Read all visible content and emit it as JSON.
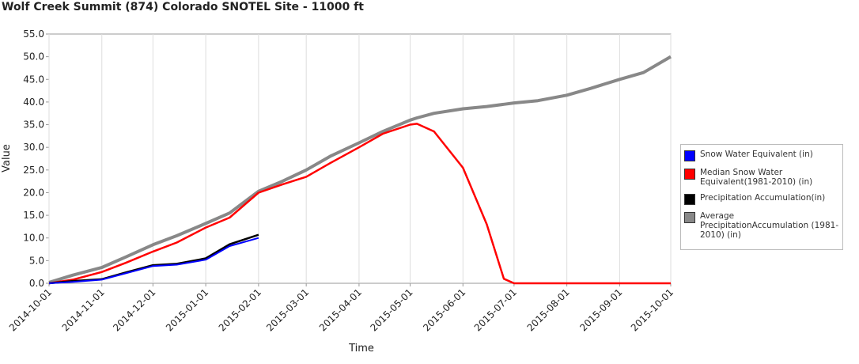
{
  "chart_data": {
    "type": "line",
    "title": "Wolf Creek Summit (874) Colorado  SNOTEL Site - 11000 ft",
    "x_label": "Time",
    "y_label": "Value",
    "x": [
      "2014-10-01",
      "2014-10-15",
      "2014-11-01",
      "2014-11-15",
      "2014-12-01",
      "2014-12-15",
      "2015-01-01",
      "2015-01-15",
      "2015-02-01",
      "2015-02-15",
      "2015-03-01",
      "2015-03-15",
      "2015-04-01",
      "2015-04-15",
      "2015-05-01",
      "2015-05-05",
      "2015-05-15",
      "2015-06-01",
      "2015-06-15",
      "2015-06-25",
      "2015-07-01",
      "2015-07-15",
      "2015-08-01",
      "2015-08-15",
      "2015-09-01",
      "2015-09-15",
      "2015-10-01"
    ],
    "series": [
      {
        "name": "Snow Water Equivalent (in)",
        "color": "#0000ff",
        "values": [
          0,
          0.3,
          0.8,
          2.2,
          3.8,
          4.1,
          5.2,
          8.2,
          10.0,
          null,
          null,
          null,
          null,
          null,
          null,
          null,
          null,
          null,
          null,
          null,
          null,
          null,
          null,
          null,
          null,
          null,
          null
        ]
      },
      {
        "name": "Median Snow Water Equivalent(1981-2010) (in)",
        "color": "#ff0000",
        "values": [
          0,
          0.8,
          2.5,
          4.5,
          7.0,
          9.0,
          12.3,
          14.5,
          20.0,
          21.8,
          23.5,
          26.5,
          30.0,
          33.0,
          35.0,
          35.2,
          33.5,
          25.5,
          13.0,
          1.0,
          0,
          0,
          0,
          0,
          0,
          0,
          0
        ]
      },
      {
        "name": "Precipitation Accumulation(in)",
        "color": "#000000",
        "values": [
          0,
          0.5,
          0.9,
          2.4,
          4.0,
          4.3,
          5.5,
          8.6,
          10.7,
          null,
          null,
          null,
          null,
          null,
          null,
          null,
          null,
          null,
          null,
          null,
          null,
          null,
          null,
          null,
          null,
          null,
          null
        ]
      },
      {
        "name": "Average PrecipitationAccumulation (1981-2010) (in)",
        "color": "#888888",
        "values": [
          0.2,
          1.8,
          3.5,
          5.8,
          8.5,
          10.5,
          13.2,
          15.5,
          20.3,
          22.5,
          25.0,
          28.0,
          31.0,
          33.5,
          36.0,
          36.5,
          37.5,
          38.5,
          39.0,
          39.5,
          39.8,
          40.3,
          41.5,
          43.0,
          45.0,
          46.5,
          50.0
        ]
      }
    ],
    "xlim": [
      "2014-10-01",
      "2015-10-01"
    ],
    "xticks": [
      "2014-10-01",
      "2014-11-01",
      "2014-12-01",
      "2015-01-01",
      "2015-02-01",
      "2015-03-01",
      "2015-04-01",
      "2015-05-01",
      "2015-06-01",
      "2015-07-01",
      "2015-08-01",
      "2015-09-01",
      "2015-10-01"
    ],
    "ylim": [
      0,
      55
    ],
    "yticks": [
      {
        "value": 0,
        "label": "0.0"
      },
      {
        "value": 5,
        "label": "5.0"
      },
      {
        "value": 10,
        "label": "10.0"
      },
      {
        "value": 15,
        "label": "15.0"
      },
      {
        "value": 20,
        "label": "20.0"
      },
      {
        "value": 25,
        "label": "25.0"
      },
      {
        "value": 30,
        "label": "30.0"
      },
      {
        "value": 35,
        "label": "35.0"
      },
      {
        "value": 40,
        "label": "40.0"
      },
      {
        "value": 45,
        "label": "45.0"
      },
      {
        "value": 50,
        "label": "50.0"
      },
      {
        "value": 55,
        "label": "55.0"
      }
    ],
    "grid": "x",
    "legend": "right"
  }
}
